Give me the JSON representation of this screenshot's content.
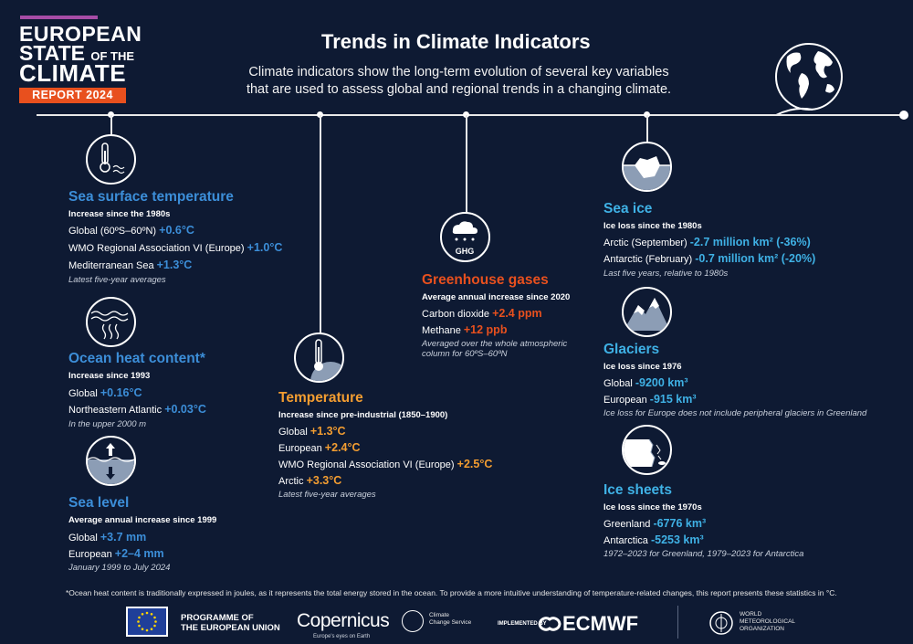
{
  "brand": {
    "line1": "EUROPEAN",
    "line2a": "STATE",
    "line2b": "OF THE",
    "line3": "CLIMATE",
    "report": "REPORT 2024"
  },
  "title": "Trends in Climate Indicators",
  "subtitle": "Climate indicators show the long-term evolution of several key variables that are used to assess global and regional trends in a changing climate.",
  "sst": {
    "title": "Sea surface temperature",
    "sub": "Increase since the 1980s",
    "l1": "Global (60ºS–60ºN)",
    "v1": "+0.6°C",
    "l2": "WMO Regional Association VI (Europe)",
    "v2": "+1.0°C",
    "l3": "Mediterranean Sea",
    "v3": "+1.3°C",
    "note": "Latest five-year averages"
  },
  "ohc": {
    "title": "Ocean heat content*",
    "sub": "Increase since 1993",
    "l1": "Global",
    "v1": "+0.16°C",
    "l2": "Northeastern Atlantic",
    "v2": "+0.03°C",
    "note": "In the upper 2000 m"
  },
  "sl": {
    "title": "Sea level",
    "sub": "Average annual increase since 1999",
    "l1": "Global",
    "v1": "+3.7 mm",
    "l2": "European",
    "v2": "+2–4 mm",
    "note": "January 1999 to July 2024"
  },
  "temp": {
    "title": "Temperature",
    "sub": "Increase since pre-industrial (1850–1900)",
    "l1": "Global",
    "v1": "+1.3°C",
    "l2": "European",
    "v2": "+2.4°C",
    "l3": "WMO Regional Association VI (Europe)",
    "v3": "+2.5°C",
    "l4": "Arctic",
    "v4": "+3.3°C",
    "note": "Latest five-year averages"
  },
  "ghg": {
    "icon_label": "GHG",
    "title": "Greenhouse gases",
    "sub": "Average annual increase since 2020",
    "l1": "Carbon dioxide",
    "v1": "+2.4 ppm",
    "l2": "Methane",
    "v2": "+12 ppb",
    "note1": "Averaged over the whole atmospheric",
    "note2": "column for 60ºS–60ºN"
  },
  "seaice": {
    "title": "Sea ice",
    "sub": "Ice loss since the 1980s",
    "l1": "Arctic (September)",
    "v1": "-2.7 million km² (-36%)",
    "l2": "Antarctic (February)",
    "v2": "-0.7 million km² (-20%)",
    "note": "Last five years, relative to 1980s"
  },
  "glaciers": {
    "title": "Glaciers",
    "sub": "Ice loss since 1976",
    "l1": "Global",
    "v1": "-9200 km³",
    "l2": "European",
    "v2": "-915 km³",
    "note": "Ice loss for Europe does not include peripheral glaciers in Greenland"
  },
  "icesheets": {
    "title": "Ice sheets",
    "sub": "Ice loss since the 1970s",
    "l1": "Greenland",
    "v1": "-6776 km³",
    "l2": "Antarctica",
    "v2": "-5253 km³",
    "note": "1972–2023 for Greenland, 1979–2023 for Antarctica"
  },
  "footnote": "*Ocean heat content is traditionally expressed in joules, as it represents the total energy stored in the ocean. To provide a more intuitive understanding of temperature-related changes, this report presents these statistics in °C.",
  "logos": {
    "eu1": "PROGRAMME OF",
    "eu2": "THE EUROPEAN UNION",
    "copernicus": "Copernicus",
    "copernicus_tag": "Europe's eyes on Earth",
    "c3s1": "Climate",
    "c3s2": "Change Service",
    "implemented": "IMPLEMENTED BY",
    "ecmwf": "ECMWF",
    "wmo1": "WORLD",
    "wmo2": "METEOROLOGICAL",
    "wmo3": "ORGANIZATION"
  },
  "colors": {
    "background": "#0e1a33",
    "blue": "#3c8ed8",
    "orange": "#f39d31",
    "red": "#e8501e",
    "cyan": "#3fb1e5",
    "accent_bar": "#a64ca6"
  }
}
